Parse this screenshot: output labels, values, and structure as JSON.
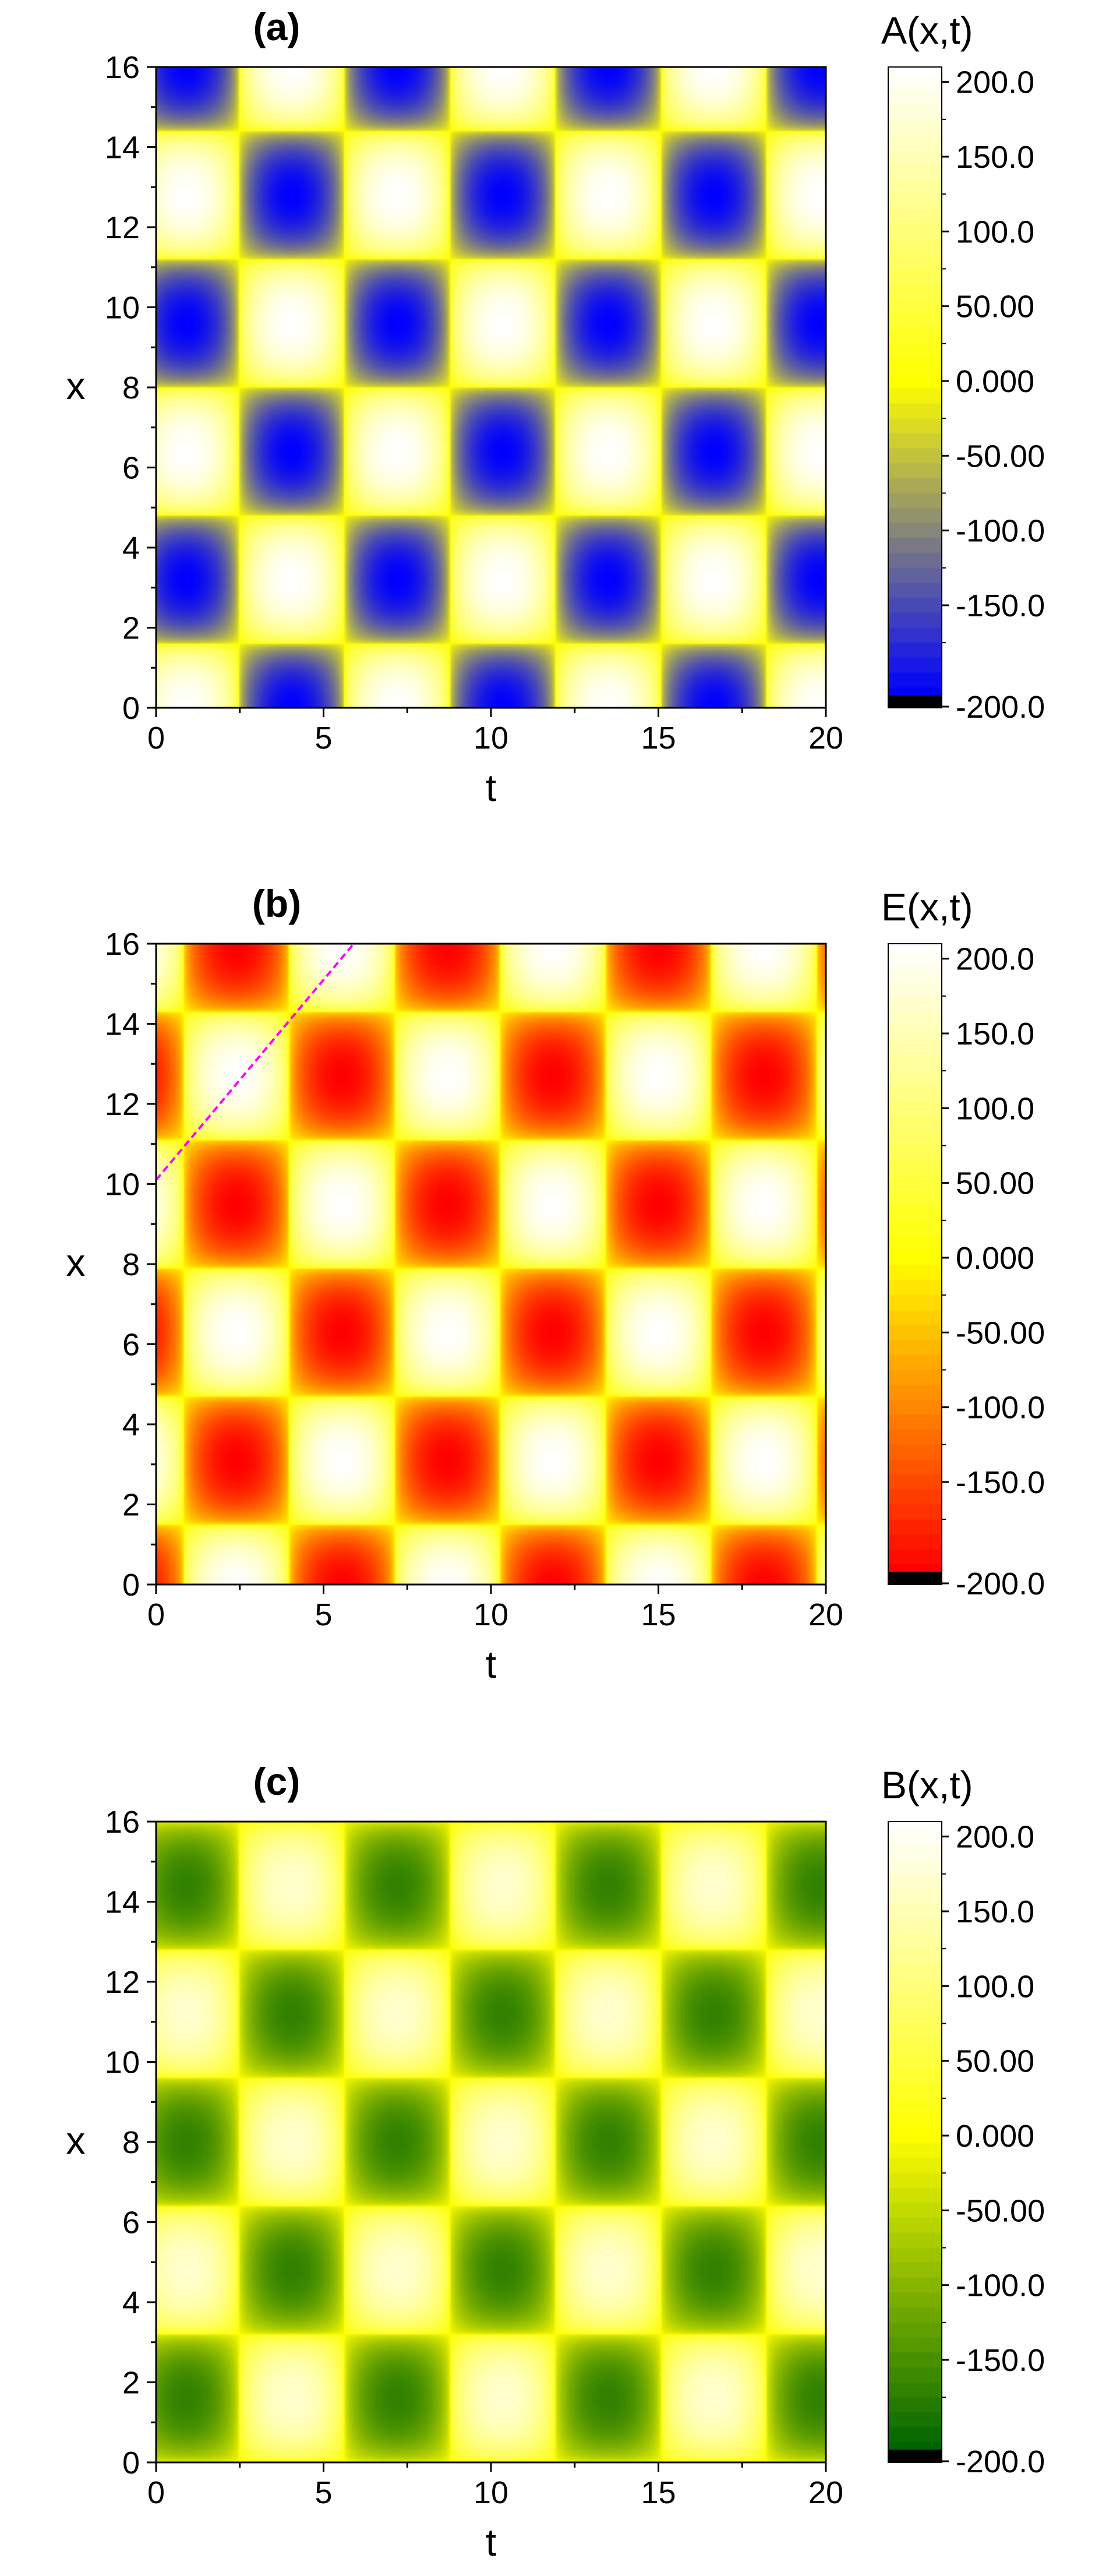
{
  "chart_data": [
    {
      "type": "heatmap",
      "panel_label": "(a)",
      "colorbar_title": "A(x,t)",
      "xlabel": "t",
      "ylabel": "x",
      "xlim": [
        0,
        20
      ],
      "ylim": [
        0,
        16
      ],
      "xticks": [
        "0",
        "5",
        "10",
        "15",
        "20"
      ],
      "yticks": [
        "0",
        "2",
        "4",
        "6",
        "8",
        "10",
        "12",
        "14",
        "16"
      ],
      "colorbar_ticks": [
        "200.0",
        "150.0",
        "100.0",
        "50.00",
        "0.000",
        "-50.00",
        "-100.0",
        "-150.0",
        "-200.0"
      ],
      "value_range": [
        -210,
        210
      ],
      "colormap": [
        "#ffffff",
        "#ffff00",
        "#0000ff"
      ],
      "underflow_color": "#000000",
      "field": {
        "amplitude": 210,
        "x_period": 6.4,
        "t_period": 6.3,
        "x_phase": 3.2,
        "t_phase": 0.9,
        "rounding": 0.45
      },
      "guide_line": null,
      "approximate_extrema": [
        {
          "t": 0.9,
          "x": 3.2,
          "value": -200
        },
        {
          "t": 0.9,
          "x": 9.6,
          "value": -200
        },
        {
          "t": 0.9,
          "x": 16.0,
          "value": -200
        },
        {
          "t": 4.0,
          "x": 0.0,
          "value": -200
        },
        {
          "t": 4.0,
          "x": 6.4,
          "value": -200
        },
        {
          "t": 4.0,
          "x": 12.8,
          "value": -200
        },
        {
          "t": 0.9,
          "x": 0.0,
          "value": 200
        },
        {
          "t": 0.9,
          "x": 6.4,
          "value": 200
        },
        {
          "t": 4.0,
          "x": 3.2,
          "value": 200
        },
        {
          "t": 4.0,
          "x": 9.6,
          "value": 200
        }
      ]
    },
    {
      "type": "heatmap",
      "panel_label": "(b)",
      "colorbar_title": "E(x,t)",
      "xlabel": "t",
      "ylabel": "x",
      "xlim": [
        0,
        20
      ],
      "ylim": [
        0,
        16
      ],
      "xticks": [
        "0",
        "5",
        "10",
        "15",
        "20"
      ],
      "yticks": [
        "0",
        "2",
        "4",
        "6",
        "8",
        "10",
        "12",
        "14",
        "16"
      ],
      "colorbar_ticks": [
        "200.0",
        "150.0",
        "100.0",
        "50.00",
        "0.000",
        "-50.00",
        "-100.0",
        "-150.0",
        "-200.0"
      ],
      "value_range": [
        -210,
        210
      ],
      "colormap": [
        "#ffffff",
        "#ffff00",
        "#ff0000"
      ],
      "underflow_color": "#000000",
      "field": {
        "amplitude": 210,
        "x_period": 6.4,
        "t_period": 6.3,
        "x_phase": 3.1,
        "t_phase": 2.4,
        "rounding": 0.45
      },
      "guide_line": {
        "t": [
          0,
          5.9
        ],
        "x": [
          10.1,
          16
        ],
        "color": "#ff00ff"
      },
      "approximate_extrema": [
        {
          "t": 2.4,
          "x": 3.1,
          "value": -200
        },
        {
          "t": 2.4,
          "x": 9.5,
          "value": -200
        },
        {
          "t": 2.4,
          "x": 15.9,
          "value": -200
        },
        {
          "t": 5.5,
          "x": 0.0,
          "value": -200
        },
        {
          "t": 5.5,
          "x": 6.3,
          "value": -200
        },
        {
          "t": 5.5,
          "x": 12.7,
          "value": -200
        },
        {
          "t": 2.4,
          "x": 6.3,
          "value": 200
        },
        {
          "t": 5.5,
          "x": 3.1,
          "value": 200
        }
      ]
    },
    {
      "type": "heatmap",
      "panel_label": "(c)",
      "colorbar_title": "B(x,t)",
      "xlabel": "t",
      "ylabel": "x",
      "xlim": [
        0,
        20
      ],
      "ylim": [
        0,
        16
      ],
      "xticks": [
        "0",
        "5",
        "10",
        "15",
        "20"
      ],
      "yticks": [
        "0",
        "2",
        "4",
        "6",
        "8",
        "10",
        "12",
        "14",
        "16"
      ],
      "colorbar_ticks": [
        "200.0",
        "150.0",
        "100.0",
        "50.00",
        "0.000",
        "-50.00",
        "-100.0",
        "-150.0",
        "-200.0"
      ],
      "value_range": [
        -210,
        210
      ],
      "colormap": [
        "#ffffff",
        "#ffff00",
        "#006400"
      ],
      "underflow_color": "#000000",
      "field": {
        "amplitude": 170,
        "x_period": 6.4,
        "t_period": 6.3,
        "x_phase": 1.6,
        "t_phase": 0.9,
        "rounding": 0.45
      },
      "guide_line": null,
      "approximate_extrema": [
        {
          "t": 0.9,
          "x": 1.6,
          "value": -160
        },
        {
          "t": 0.9,
          "x": 8.0,
          "value": -160
        },
        {
          "t": 0.9,
          "x": 14.4,
          "value": -160
        },
        {
          "t": 4.0,
          "x": 4.8,
          "value": -160
        },
        {
          "t": 4.0,
          "x": 11.2,
          "value": -160
        },
        {
          "t": 0.9,
          "x": 4.8,
          "value": 160
        },
        {
          "t": 4.0,
          "x": 1.6,
          "value": 160
        }
      ]
    }
  ]
}
